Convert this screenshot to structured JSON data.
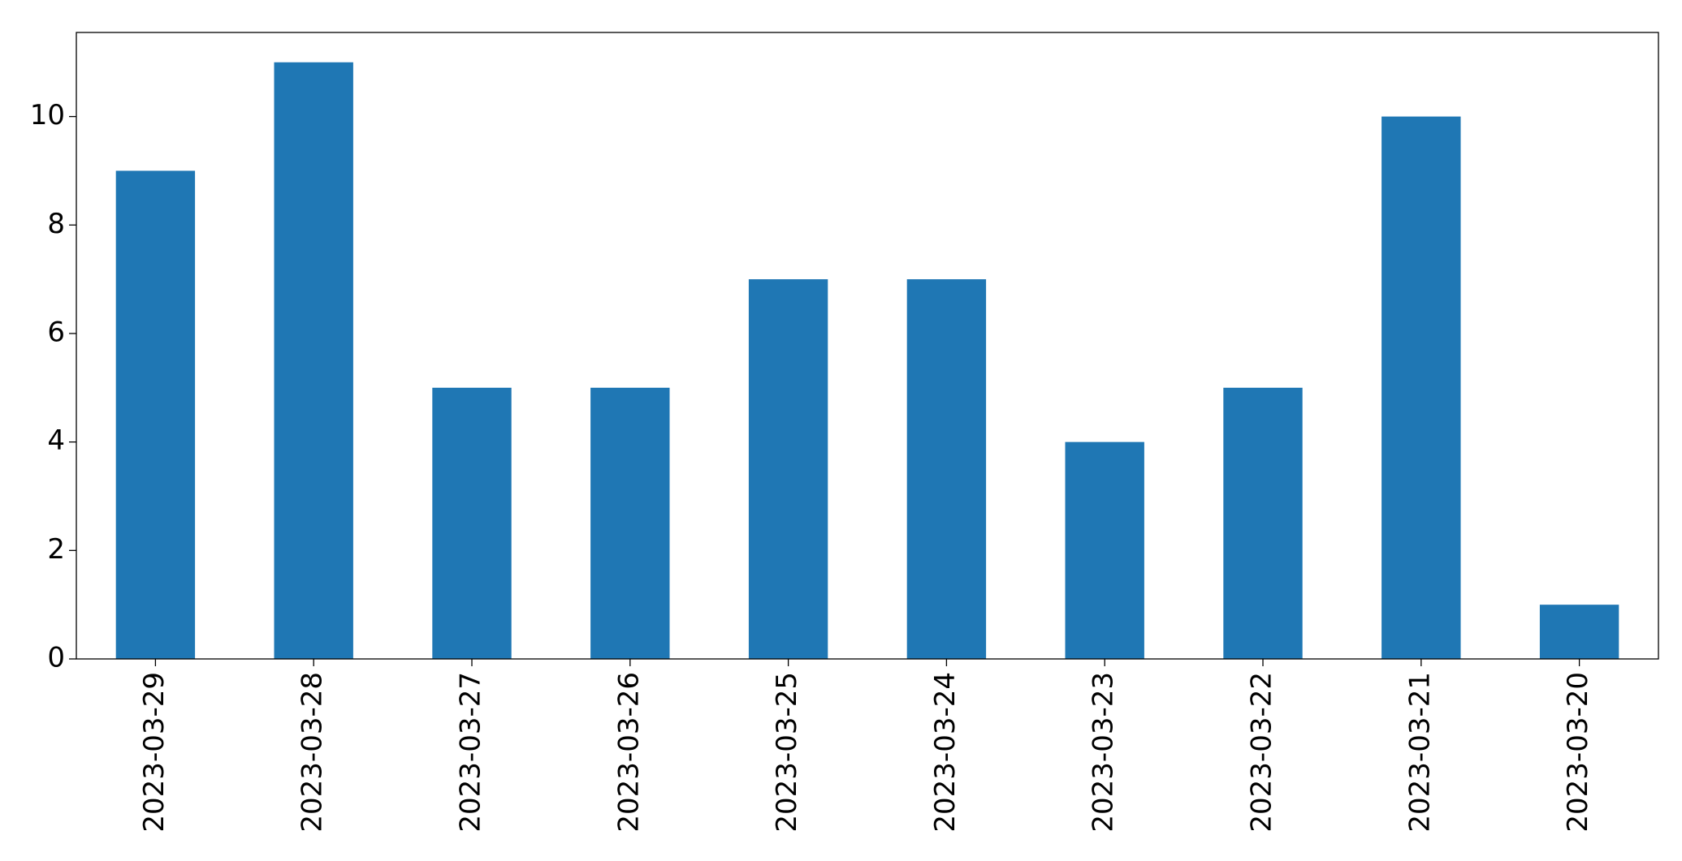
{
  "chart_data": {
    "type": "bar",
    "categories": [
      "2023-03-29",
      "2023-03-28",
      "2023-03-27",
      "2023-03-26",
      "2023-03-25",
      "2023-03-24",
      "2023-03-23",
      "2023-03-22",
      "2023-03-21",
      "2023-03-20"
    ],
    "values": [
      9,
      11,
      5,
      5,
      7,
      7,
      4,
      5,
      10,
      1
    ],
    "color": "#1f77b4",
    "ylim": [
      0,
      11.55
    ],
    "yticks": [
      0,
      2,
      4,
      6,
      8,
      10
    ],
    "grid": false
  }
}
